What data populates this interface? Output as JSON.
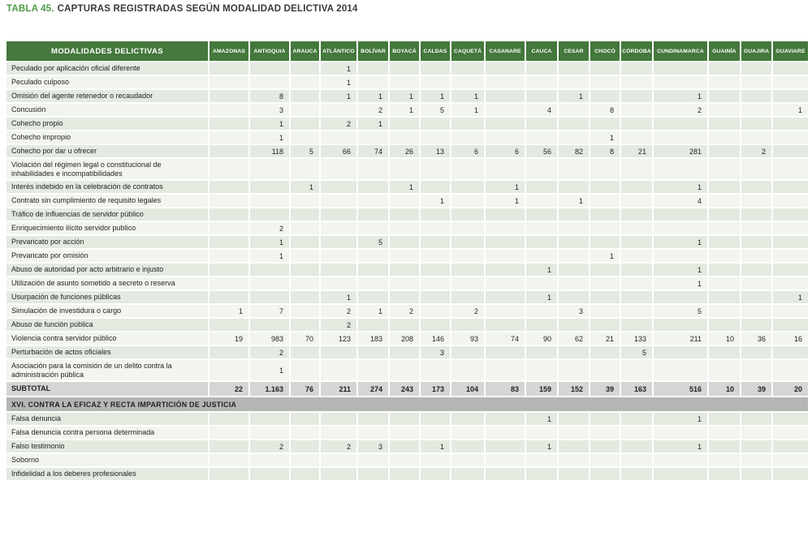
{
  "title": {
    "prefix": "TABLA 45.",
    "text": "CAPTURAS REGISTRADAS SEGÚN MODALIDAD DELICTIVA 2014"
  },
  "colors": {
    "title_green": "#4d9b44",
    "header_green": "#44783c",
    "row_dark": "#e3eae0",
    "row_light": "#f2f5ef",
    "subtotal_bg": "#d3d6d2",
    "section_bg": "#b3b6b2"
  },
  "table": {
    "header_label": "MODALIDADES DELICTIVAS",
    "columns": [
      "AMAZONAS",
      "ANTIOQUIA",
      "ARAUCA",
      "ATLÁNTICO",
      "BOLÍVAR",
      "BOYACÁ",
      "CALDAS",
      "CAQUETÁ",
      "CASANARE",
      "CAUCA",
      "CESAR",
      "CHOCÓ",
      "CÓRDOBA",
      "CUNDINAMARCA",
      "GUAINÍA",
      "GUAJIRA",
      "GUAVIARE"
    ],
    "rows": [
      {
        "label": "Peculado por aplicación oficial diferente",
        "values": [
          "",
          "",
          "",
          "1",
          "",
          "",
          "",
          "",
          "",
          "",
          "",
          "",
          "",
          "",
          "",
          "",
          ""
        ]
      },
      {
        "label": "Peculado culposo",
        "values": [
          "",
          "",
          "",
          "1",
          "",
          "",
          "",
          "",
          "",
          "",
          "",
          "",
          "",
          "",
          "",
          "",
          ""
        ]
      },
      {
        "label": "Omisión del agente retenedor o recaudador",
        "values": [
          "",
          "8",
          "",
          "1",
          "1",
          "1",
          "1",
          "1",
          "",
          "",
          "1",
          "",
          "",
          "1",
          "",
          "",
          ""
        ]
      },
      {
        "label": "Concusión",
        "values": [
          "",
          "3",
          "",
          "",
          "2",
          "1",
          "5",
          "1",
          "",
          "4",
          "",
          "8",
          "",
          "2",
          "",
          "",
          "1"
        ]
      },
      {
        "label": "Cohecho propio",
        "values": [
          "",
          "1",
          "",
          "2",
          "1",
          "",
          "",
          "",
          "",
          "",
          "",
          "",
          "",
          "",
          "",
          "",
          ""
        ]
      },
      {
        "label": "Cohecho impropio",
        "values": [
          "",
          "1",
          "",
          "",
          "",
          "",
          "",
          "",
          "",
          "",
          "",
          "1",
          "",
          "",
          "",
          "",
          ""
        ]
      },
      {
        "label": "Cohecho por dar u ofrecer",
        "values": [
          "",
          "118",
          "5",
          "66",
          "74",
          "26",
          "13",
          "6",
          "6",
          "56",
          "82",
          "8",
          "21",
          "281",
          "",
          "2",
          ""
        ]
      },
      {
        "label": "Violación del régimen legal o constitucional de inhabilidades e incompatibilidades",
        "values": [
          "",
          "",
          "",
          "",
          "",
          "",
          "",
          "",
          "",
          "",
          "",
          "",
          "",
          "",
          "",
          "",
          ""
        ]
      },
      {
        "label": "Interés indebido en la celebración de contratos",
        "values": [
          "",
          "",
          "1",
          "",
          "",
          "1",
          "",
          "",
          "1",
          "",
          "",
          "",
          "",
          "1",
          "",
          "",
          ""
        ]
      },
      {
        "label": "Contrato sin cumplimiento de requisito legales",
        "values": [
          "",
          "",
          "",
          "",
          "",
          "",
          "1",
          "",
          "1",
          "",
          "1",
          "",
          "",
          "4",
          "",
          "",
          ""
        ]
      },
      {
        "label": "Tráfico de influencias de servidor público",
        "values": [
          "",
          "",
          "",
          "",
          "",
          "",
          "",
          "",
          "",
          "",
          "",
          "",
          "",
          "",
          "",
          "",
          ""
        ]
      },
      {
        "label": "Enriquecimiento ilícito servidor publico",
        "values": [
          "",
          "2",
          "",
          "",
          "",
          "",
          "",
          "",
          "",
          "",
          "",
          "",
          "",
          "",
          "",
          "",
          ""
        ]
      },
      {
        "label": "Prevaricato por acción",
        "values": [
          "",
          "1",
          "",
          "",
          "5",
          "",
          "",
          "",
          "",
          "",
          "",
          "",
          "",
          "1",
          "",
          "",
          ""
        ]
      },
      {
        "label": "Prevaricato por omisión",
        "values": [
          "",
          "1",
          "",
          "",
          "",
          "",
          "",
          "",
          "",
          "",
          "",
          "1",
          "",
          "",
          "",
          "",
          ""
        ]
      },
      {
        "label": "Abuso de autoridad por acto arbitrario e injusto",
        "values": [
          "",
          "",
          "",
          "",
          "",
          "",
          "",
          "",
          "",
          "1",
          "",
          "",
          "",
          "1",
          "",
          "",
          ""
        ]
      },
      {
        "label": "Utilización de asunto sometido a secreto o reserva",
        "values": [
          "",
          "",
          "",
          "",
          "",
          "",
          "",
          "",
          "",
          "",
          "",
          "",
          "",
          "1",
          "",
          "",
          ""
        ]
      },
      {
        "label": "Usurpación de funciones públicas",
        "values": [
          "",
          "",
          "",
          "1",
          "",
          "",
          "",
          "",
          "",
          "1",
          "",
          "",
          "",
          "",
          "",
          "",
          "1"
        ]
      },
      {
        "label": "Simulación de investidura o cargo",
        "values": [
          "1",
          "7",
          "",
          "2",
          "1",
          "2",
          "",
          "2",
          "",
          "",
          "3",
          "",
          "",
          "5",
          "",
          "",
          ""
        ]
      },
      {
        "label": "Abuso de función pública",
        "values": [
          "",
          "",
          "",
          "2",
          "",
          "",
          "",
          "",
          "",
          "",
          "",
          "",
          "",
          "",
          "",
          "",
          ""
        ]
      },
      {
        "label": "Violencia contra servidor público",
        "values": [
          "19",
          "983",
          "70",
          "123",
          "183",
          "208",
          "146",
          "93",
          "74",
          "90",
          "62",
          "21",
          "133",
          "211",
          "10",
          "36",
          "16"
        ]
      },
      {
        "label": "Perturbación de actos oficiales",
        "values": [
          "",
          "2",
          "",
          "",
          "",
          "",
          "3",
          "",
          "",
          "",
          "",
          "",
          "5",
          "",
          "",
          "",
          ""
        ]
      },
      {
        "label": "Asociación para la comisión de un delito contra la administración pública",
        "values": [
          "",
          "1",
          "",
          "",
          "",
          "",
          "",
          "",
          "",
          "",
          "",
          "",
          "",
          "",
          "",
          "",
          ""
        ]
      }
    ],
    "subtotal": {
      "label": "SUBTOTAL",
      "values": [
        "22",
        "1.163",
        "76",
        "211",
        "274",
        "243",
        "173",
        "104",
        "83",
        "159",
        "152",
        "39",
        "163",
        "516",
        "10",
        "39",
        "20"
      ]
    },
    "section_header": "XVI. CONTRA LA EFICAZ Y RECTA IMPARTICIÓN DE JUSTICIA",
    "rows2": [
      {
        "label": "Falsa denuncia",
        "values": [
          "",
          "",
          "",
          "",
          "",
          "",
          "",
          "",
          "",
          "1",
          "",
          "",
          "",
          "1",
          "",
          "",
          ""
        ]
      },
      {
        "label": "Falsa denuncia contra persona determinada",
        "values": [
          "",
          "",
          "",
          "",
          "",
          "",
          "",
          "",
          "",
          "",
          "",
          "",
          "",
          "",
          "",
          "",
          ""
        ]
      },
      {
        "label": "Falso testimonio",
        "values": [
          "",
          "2",
          "",
          "2",
          "3",
          "",
          "1",
          "",
          "",
          "1",
          "",
          "",
          "",
          "1",
          "",
          "",
          ""
        ]
      },
      {
        "label": "Soborno",
        "values": [
          "",
          "",
          "",
          "",
          "",
          "",
          "",
          "",
          "",
          "",
          "",
          "",
          "",
          "",
          "",
          "",
          ""
        ]
      },
      {
        "label": "Infidelidad a los deberes profesionales",
        "values": [
          "",
          "",
          "",
          "",
          "",
          "",
          "",
          "",
          "",
          "",
          "",
          "",
          "",
          "",
          "",
          "",
          ""
        ]
      }
    ]
  }
}
